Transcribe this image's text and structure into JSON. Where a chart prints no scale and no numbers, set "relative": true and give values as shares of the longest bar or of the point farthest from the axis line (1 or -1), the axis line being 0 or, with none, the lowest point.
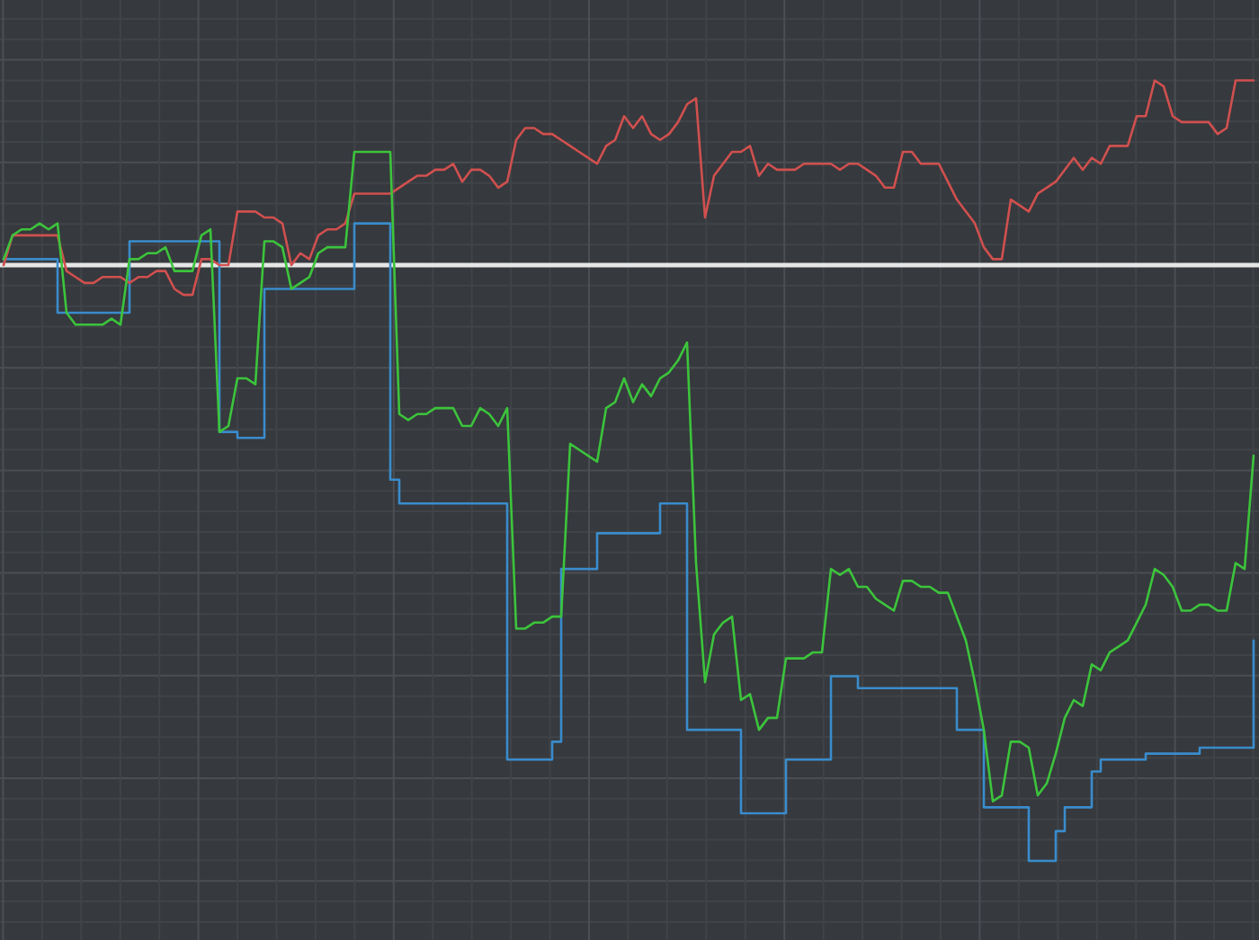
{
  "chart_data": {
    "type": "line",
    "relative": true,
    "grid": true,
    "categories": [
      null,
      null,
      null,
      null,
      null,
      null,
      null,
      null,
      null,
      null,
      null,
      null,
      null,
      null,
      null,
      null,
      null,
      null,
      null,
      null,
      null,
      null,
      null,
      null,
      null,
      null,
      null,
      null,
      null,
      null,
      null,
      null,
      null,
      null,
      null,
      null,
      null,
      null,
      null,
      null,
      null,
      null,
      null,
      null,
      null,
      null,
      null,
      null,
      null,
      null,
      null,
      null,
      null,
      null,
      null,
      null,
      null,
      null,
      null,
      null,
      null,
      null,
      null,
      null,
      null,
      null,
      null,
      null,
      null,
      null,
      null,
      null,
      null,
      null,
      null,
      null,
      null,
      null,
      null,
      null,
      null,
      null,
      null,
      null,
      null,
      null,
      null,
      null,
      null,
      null,
      null,
      null,
      null,
      null,
      null,
      null,
      null,
      null,
      null,
      null,
      null,
      null,
      null,
      null,
      null,
      null,
      null,
      null,
      null,
      null,
      null,
      null,
      null,
      null,
      null,
      null,
      null,
      null,
      null,
      null,
      null,
      null,
      null,
      null,
      null,
      null,
      null,
      null,
      null,
      null,
      null,
      null,
      null,
      null,
      null,
      null,
      null,
      null,
      null,
      null
    ],
    "series": [
      {
        "type": "step",
        "color": "#3a8ccc",
        "values": [
          0.01,
          0.01,
          0.01,
          0.01,
          0.01,
          0.01,
          -0.08,
          -0.08,
          -0.08,
          -0.08,
          -0.08,
          -0.08,
          -0.08,
          -0.08,
          0.04,
          0.04,
          0.04,
          0.04,
          0.04,
          0.04,
          0.04,
          0.04,
          0.04,
          0.04,
          -0.28,
          -0.28,
          -0.29,
          -0.29,
          -0.29,
          -0.04,
          -0.04,
          -0.04,
          -0.04,
          -0.04,
          -0.04,
          -0.04,
          -0.04,
          -0.04,
          -0.04,
          0.07,
          0.07,
          0.07,
          0.07,
          -0.36,
          -0.4,
          -0.4,
          -0.4,
          -0.4,
          -0.4,
          -0.4,
          -0.4,
          -0.4,
          -0.4,
          -0.4,
          -0.4,
          -0.4,
          -0.83,
          -0.83,
          -0.83,
          -0.83,
          -0.83,
          -0.8,
          -0.51,
          -0.51,
          -0.51,
          -0.51,
          -0.45,
          -0.45,
          -0.45,
          -0.45,
          -0.45,
          -0.45,
          -0.45,
          -0.4,
          -0.4,
          -0.4,
          -0.78,
          -0.78,
          -0.78,
          -0.78,
          -0.78,
          -0.78,
          -0.92,
          -0.92,
          -0.92,
          -0.92,
          -0.92,
          -0.83,
          -0.83,
          -0.83,
          -0.83,
          -0.83,
          -0.69,
          -0.69,
          -0.69,
          -0.71,
          -0.71,
          -0.71,
          -0.71,
          -0.71,
          -0.71,
          -0.71,
          -0.71,
          -0.71,
          -0.71,
          -0.71,
          -0.78,
          -0.78,
          -0.78,
          -0.91,
          -0.91,
          -0.91,
          -0.91,
          -0.91,
          -1,
          -1,
          -1,
          -0.95,
          -0.91,
          -0.91,
          -0.91,
          -0.85,
          -0.83,
          -0.83,
          -0.83,
          -0.83,
          -0.83,
          -0.82,
          -0.82,
          -0.82,
          -0.82,
          -0.82,
          -0.82,
          -0.81,
          -0.81,
          -0.81,
          -0.81,
          -0.81,
          -0.81,
          -0.63
        ]
      },
      {
        "color": "#d0504f",
        "values": [
          0.0,
          0.05,
          0.05,
          0.05,
          0.05,
          0.05,
          0.05,
          -0.01,
          -0.02,
          -0.03,
          -0.03,
          -0.02,
          -0.02,
          -0.02,
          -0.03,
          -0.02,
          -0.02,
          -0.01,
          -0.01,
          -0.04,
          -0.05,
          -0.05,
          0.01,
          0.01,
          0.0,
          0.0,
          0.09,
          0.09,
          0.09,
          0.08,
          0.08,
          0.07,
          0.0,
          0.02,
          0.01,
          0.05,
          0.06,
          0.06,
          0.07,
          0.12,
          0.12,
          0.12,
          0.12,
          0.12,
          0.13,
          0.14,
          0.15,
          0.15,
          0.16,
          0.16,
          0.17,
          0.14,
          0.16,
          0.16,
          0.15,
          0.13,
          0.14,
          0.21,
          0.23,
          0.23,
          0.22,
          0.22,
          0.21,
          0.2,
          0.19,
          0.18,
          0.17,
          0.2,
          0.21,
          0.25,
          0.23,
          0.25,
          0.22,
          0.21,
          0.22,
          0.24,
          0.27,
          0.28,
          0.08,
          0.15,
          0.17,
          0.19,
          0.19,
          0.2,
          0.15,
          0.17,
          0.16,
          0.16,
          0.16,
          0.17,
          0.17,
          0.17,
          0.17,
          0.16,
          0.17,
          0.17,
          0.16,
          0.15,
          0.13,
          0.13,
          0.19,
          0.19,
          0.17,
          0.17,
          0.17,
          0.14,
          0.11,
          0.09,
          0.07,
          0.03,
          0.01,
          0.01,
          0.11,
          0.1,
          0.09,
          0.12,
          0.13,
          0.14,
          0.16,
          0.18,
          0.16,
          0.18,
          0.17,
          0.2,
          0.2,
          0.2,
          0.25,
          0.25,
          0.31,
          0.3,
          0.25,
          0.24,
          0.24,
          0.24,
          0.24,
          0.22,
          0.23,
          0.31,
          0.31,
          0.31
        ]
      },
      {
        "color": "#3cc43c",
        "values": [
          0.01,
          0.05,
          0.06,
          0.06,
          0.07,
          0.06,
          0.07,
          -0.08,
          -0.1,
          -0.1,
          -0.1,
          -0.1,
          -0.09,
          -0.1,
          0.01,
          0.01,
          0.02,
          0.02,
          0.03,
          -0.01,
          -0.01,
          -0.01,
          0.05,
          0.06,
          -0.28,
          -0.27,
          -0.19,
          -0.19,
          -0.2,
          0.04,
          0.04,
          0.03,
          -0.04,
          -0.03,
          -0.02,
          0.02,
          0.03,
          0.03,
          0.03,
          0.19,
          0.19,
          0.19,
          0.19,
          0.19,
          -0.25,
          -0.26,
          -0.25,
          -0.25,
          -0.24,
          -0.24,
          -0.24,
          -0.27,
          -0.27,
          -0.24,
          -0.25,
          -0.27,
          -0.24,
          -0.61,
          -0.61,
          -0.6,
          -0.6,
          -0.59,
          -0.59,
          -0.3,
          -0.31,
          -0.32,
          -0.33,
          -0.24,
          -0.23,
          -0.19,
          -0.23,
          -0.2,
          -0.22,
          -0.19,
          -0.18,
          -0.16,
          -0.13,
          -0.5,
          -0.7,
          -0.62,
          -0.6,
          -0.59,
          -0.73,
          -0.72,
          -0.78,
          -0.76,
          -0.76,
          -0.66,
          -0.66,
          -0.66,
          -0.65,
          -0.65,
          -0.51,
          -0.52,
          -0.51,
          -0.54,
          -0.54,
          -0.56,
          -0.57,
          -0.58,
          -0.53,
          -0.53,
          -0.54,
          -0.54,
          -0.55,
          -0.55,
          -0.59,
          -0.63,
          -0.7,
          -0.78,
          -0.9,
          -0.89,
          -0.8,
          -0.8,
          -0.81,
          -0.89,
          -0.87,
          -0.82,
          -0.76,
          -0.73,
          -0.74,
          -0.67,
          -0.68,
          -0.65,
          -0.64,
          -0.63,
          -0.6,
          -0.57,
          -0.51,
          -0.52,
          -0.54,
          -0.58,
          -0.58,
          -0.57,
          -0.57,
          -0.58,
          -0.58,
          -0.5,
          -0.51,
          -0.32
        ]
      }
    ]
  }
}
